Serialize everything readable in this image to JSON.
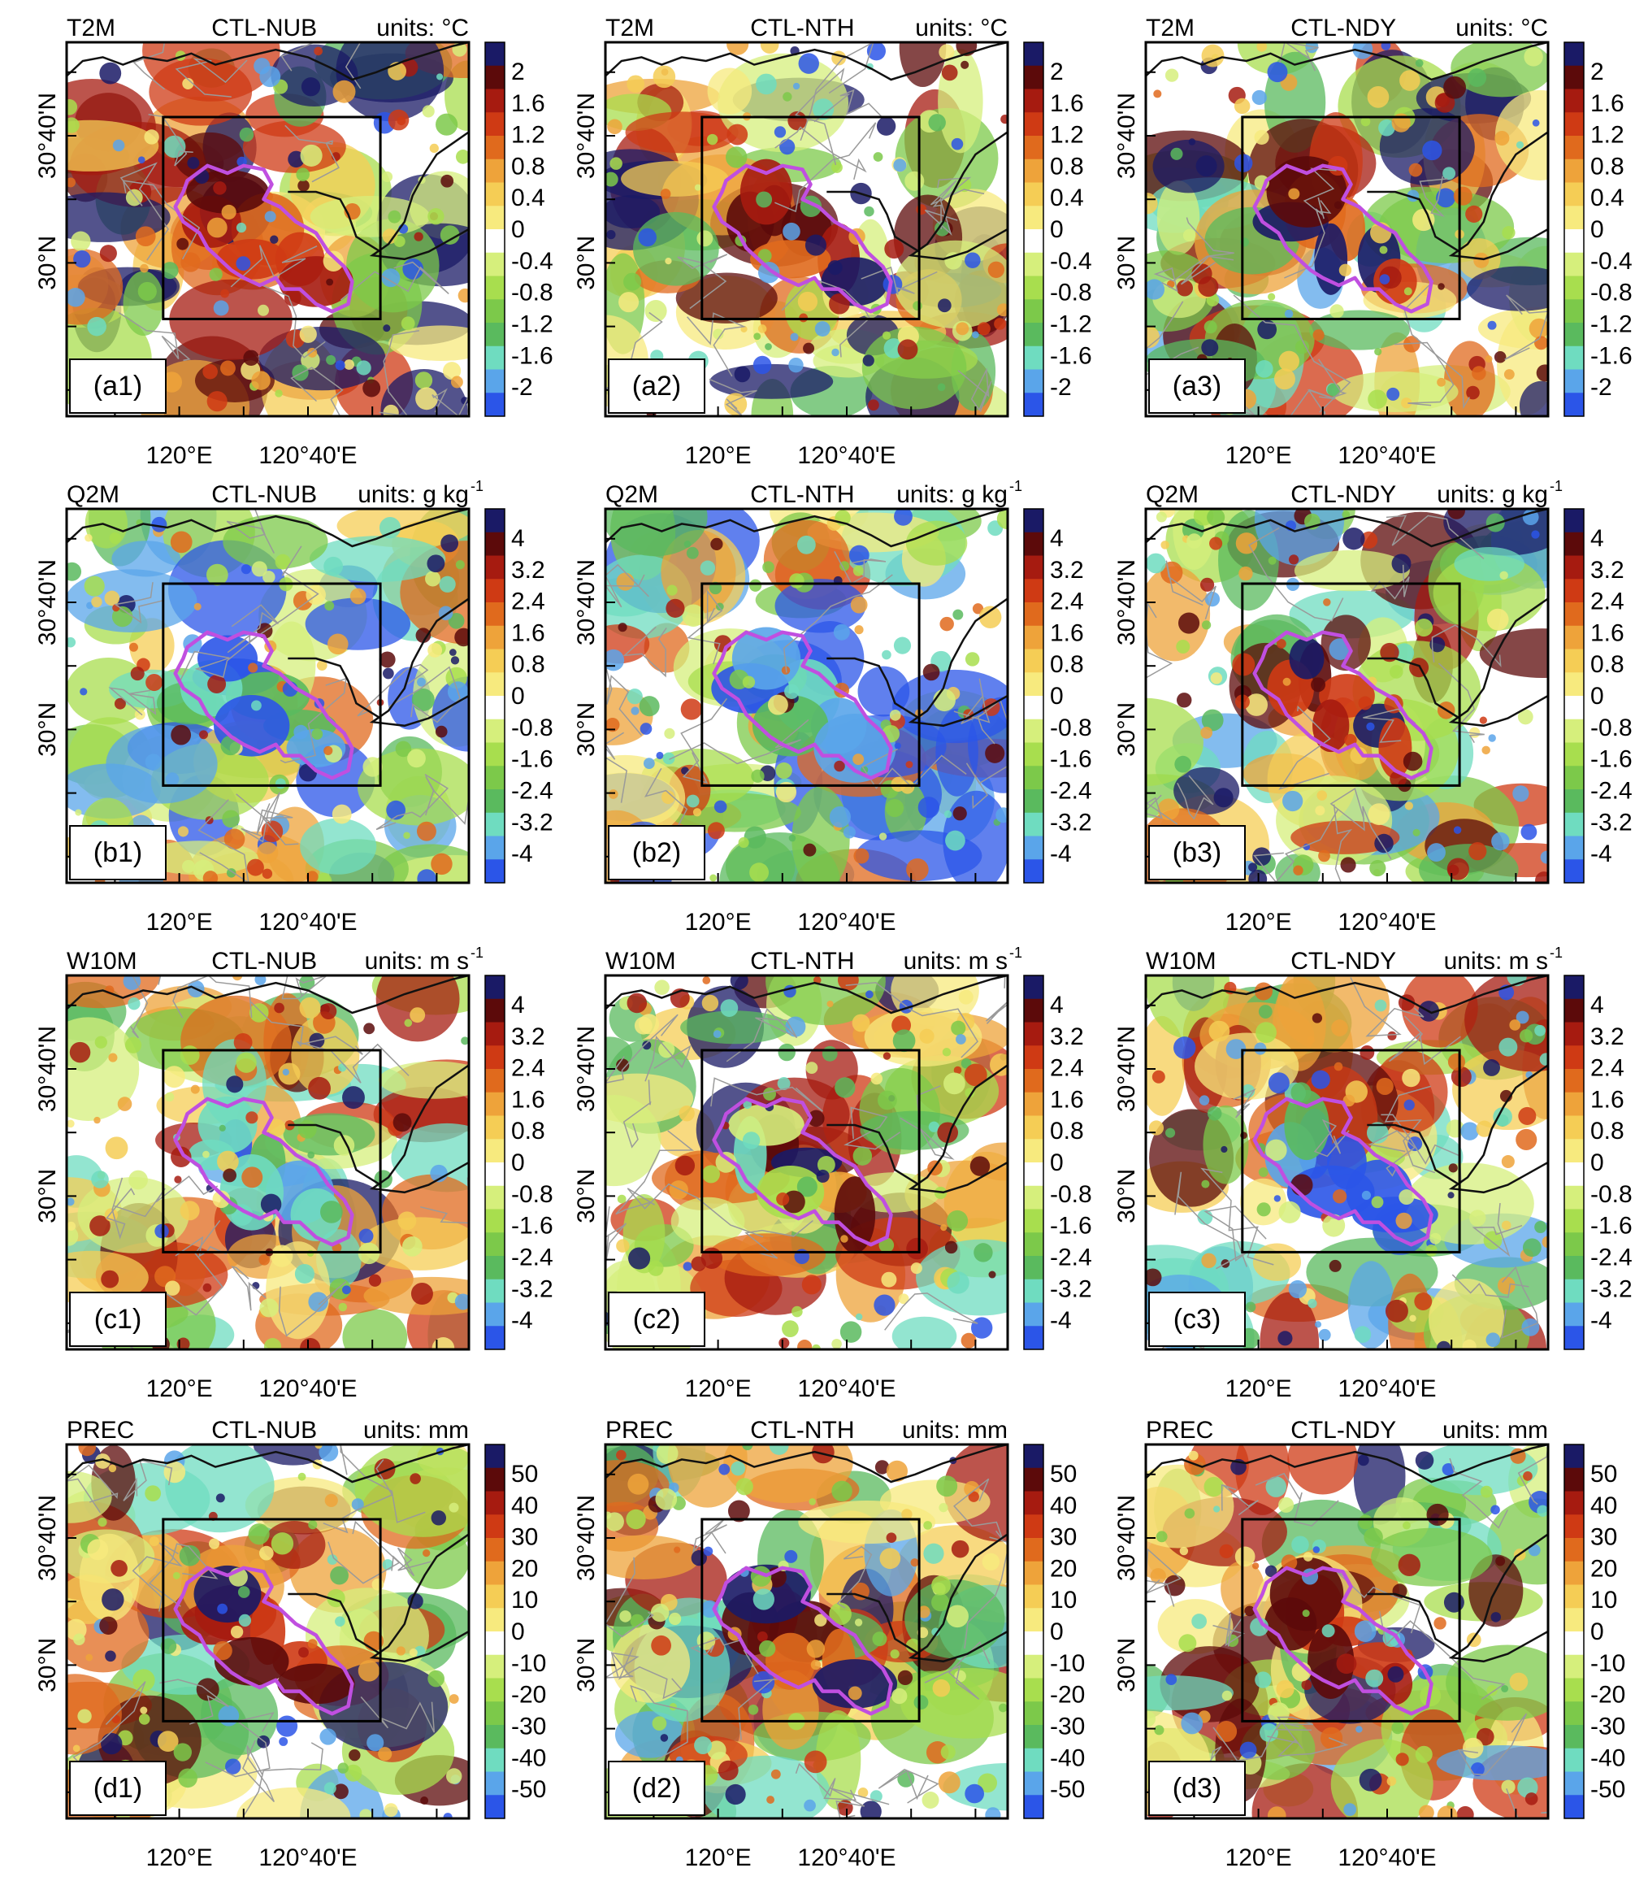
{
  "figure": {
    "rows": [
      {
        "variable": "T2M",
        "units_label": "units: ",
        "units_value": "°C",
        "units_super": "",
        "colorbar_labels": [
          "2",
          "1.6",
          "1.2",
          "0.8",
          "0.4",
          "0",
          "-0.4",
          "-0.8",
          "-1.2",
          "-1.6",
          "-2"
        ],
        "panels": [
          {
            "experiment": "CTL-NUB",
            "tag": "(a1)"
          },
          {
            "experiment": "CTL-NTH",
            "tag": "(a2)"
          },
          {
            "experiment": "CTL-NDY",
            "tag": "(a3)"
          }
        ]
      },
      {
        "variable": "Q2M",
        "units_label": "units: ",
        "units_value": "g kg",
        "units_super": "-1",
        "colorbar_labels": [
          "4",
          "3.2",
          "2.4",
          "1.6",
          "0.8",
          "0",
          "-0.8",
          "-1.6",
          "-2.4",
          "-3.2",
          "-4"
        ],
        "panels": [
          {
            "experiment": "CTL-NUB",
            "tag": "(b1)"
          },
          {
            "experiment": "CTL-NTH",
            "tag": "(b2)"
          },
          {
            "experiment": "CTL-NDY",
            "tag": "(b3)"
          }
        ]
      },
      {
        "variable": "W10M",
        "units_label": "units: ",
        "units_value": "m s",
        "units_super": "-1",
        "colorbar_labels": [
          "4",
          "3.2",
          "2.4",
          "1.6",
          "0.8",
          "0",
          "-0.8",
          "-1.6",
          "-2.4",
          "-3.2",
          "-4"
        ],
        "panels": [
          {
            "experiment": "CTL-NUB",
            "tag": "(c1)"
          },
          {
            "experiment": "CTL-NTH",
            "tag": "(c2)"
          },
          {
            "experiment": "CTL-NDY",
            "tag": "(c3)"
          }
        ]
      },
      {
        "variable": "PREC",
        "units_label": "units: ",
        "units_value": "mm",
        "units_super": "",
        "colorbar_labels": [
          "50",
          "40",
          "30",
          "20",
          "10",
          "0",
          "-10",
          "-20",
          "-30",
          "-40",
          "-50"
        ],
        "panels": [
          {
            "experiment": "CTL-NUB",
            "tag": "(d1)"
          },
          {
            "experiment": "CTL-NTH",
            "tag": "(d2)"
          },
          {
            "experiment": "CTL-NDY",
            "tag": "(d3)"
          }
        ]
      }
    ],
    "x_tick_labels": [
      "120°E",
      "120°40'E"
    ],
    "y_tick_labels": [
      "30°40'N",
      "30°N"
    ],
    "colors": {
      "colorbar": [
        "#1a1a66",
        "#5c0a0a",
        "#a61b10",
        "#cf3a14",
        "#e06a1d",
        "#eea33a",
        "#f5cd55",
        "#f7ea7e",
        "#ffffff",
        "#d6ef7c",
        "#a8de4e",
        "#7cc94a",
        "#5aba5e",
        "#6fdcc0",
        "#5aa5ea",
        "#2b55e8"
      ],
      "urban_outline": "#c04fe0",
      "coastline": "#111111",
      "county_border": "#9a9a9a"
    }
  }
}
